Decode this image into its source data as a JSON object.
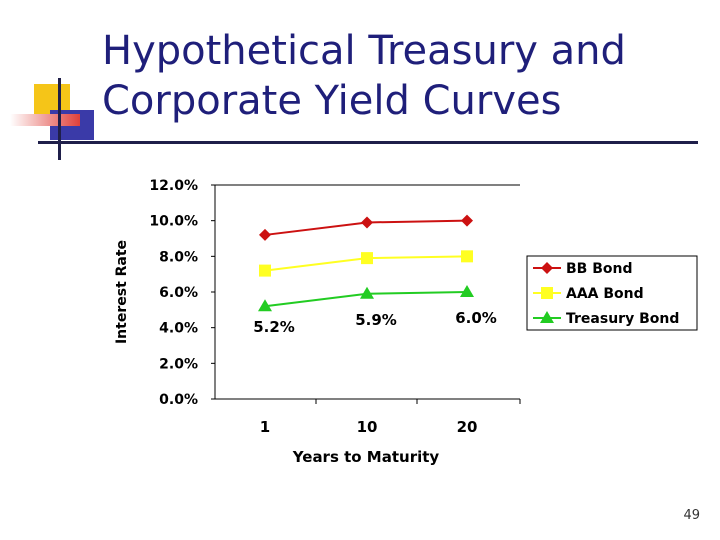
{
  "slide": {
    "title_line1": "Hypothetical Treasury and",
    "title_line2": "Corporate Yield Curves",
    "page_number": "49"
  },
  "colors": {
    "title": "#1f1f7a",
    "deco_yellow": "#f5c518",
    "deco_blue": "#3a3aa8",
    "deco_red": "#e0403a",
    "bb": "#cc1111",
    "aaa": "#ffff22",
    "treasury": "#22cc22"
  },
  "chart_data": {
    "type": "line",
    "categories": [
      "1",
      "10",
      "20"
    ],
    "xlabel": "Years to Maturity",
    "ylabel": "Interest Rate",
    "ylim": [
      0,
      12
    ],
    "yticks": [
      "0.0%",
      "2.0%",
      "4.0%",
      "6.0%",
      "8.0%",
      "10.0%",
      "12.0%"
    ],
    "grid": false,
    "legend": "right",
    "series": [
      {
        "name": "BB Bond",
        "values": [
          9.2,
          9.9,
          10.0
        ],
        "color": "#cc1111",
        "marker": "diamond"
      },
      {
        "name": "AAA Bond",
        "values": [
          7.2,
          7.9,
          8.0
        ],
        "color": "#ffff22",
        "marker": "square"
      },
      {
        "name": "Treasury Bond",
        "values": [
          5.2,
          5.9,
          6.0
        ],
        "color": "#22cc22",
        "marker": "triangle"
      }
    ],
    "data_labels": [
      "5.2%",
      "5.9%",
      "6.0%"
    ]
  }
}
